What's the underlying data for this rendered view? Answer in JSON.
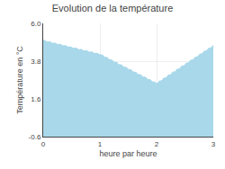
{
  "chart_data": {
    "type": "area",
    "title": "Evolution de la température",
    "xlabel": "heure par heure",
    "ylabel": "Température en °C",
    "x": [
      0,
      1,
      2,
      3
    ],
    "values": [
      5.0,
      4.2,
      2.5,
      4.7
    ],
    "color": "#a8d8ea",
    "line_style": "dotted",
    "xlim": [
      0,
      3
    ],
    "xticks": [
      0,
      1,
      2,
      3
    ],
    "ylim": [
      -0.6,
      6.0
    ],
    "yticks": [
      -0.6,
      1.6,
      3.8,
      {
        "value": 6.0,
        "label": "6.0"
      }
    ],
    "grid": true
  }
}
